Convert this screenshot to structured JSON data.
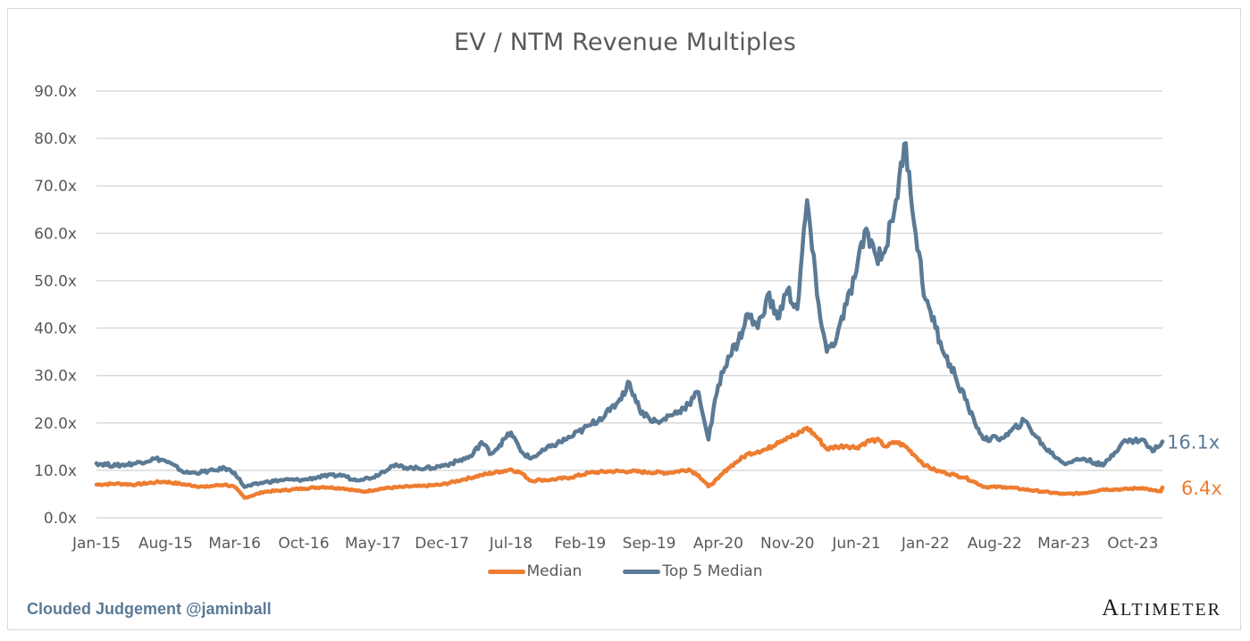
{
  "chart_data": {
    "type": "line",
    "title": "EV / NTM Revenue Multiples",
    "xlabel": "",
    "ylabel": "",
    "ylim": [
      0,
      90
    ],
    "y_ticks": [
      "0.0x",
      "10.0x",
      "20.0x",
      "30.0x",
      "40.0x",
      "50.0x",
      "60.0x",
      "70.0x",
      "80.0x",
      "90.0x"
    ],
    "y_tick_values": [
      0,
      10,
      20,
      30,
      40,
      50,
      60,
      70,
      80,
      90
    ],
    "x_tick_labels": [
      "Jan-15",
      "Aug-15",
      "Mar-16",
      "Oct-16",
      "May-17",
      "Dec-17",
      "Jul-18",
      "Feb-19",
      "Sep-19",
      "Apr-20",
      "Nov-20",
      "Jun-21",
      "Jan-22",
      "Aug-22",
      "Mar-23",
      "Oct-23"
    ],
    "x_range_months": [
      0,
      108
    ],
    "grid": true,
    "legend": "bottom",
    "series": [
      {
        "name": "Median",
        "color": "#ed7d31",
        "end_label": "6.4x",
        "x_months": [
          0,
          2,
          4,
          6,
          7,
          9,
          11,
          12,
          13,
          14,
          15,
          17,
          19,
          21,
          23,
          25,
          27,
          29,
          31,
          33,
          35,
          37,
          39,
          41,
          42,
          43,
          44,
          45,
          46,
          48,
          50,
          52,
          54,
          56,
          58,
          60,
          61,
          62,
          63,
          64,
          65,
          66,
          67,
          68,
          69,
          70,
          71,
          72,
          73,
          74,
          75,
          76,
          77,
          78,
          79,
          80,
          81,
          82,
          83,
          84,
          85,
          86,
          87,
          88,
          89,
          90,
          92,
          94,
          96,
          98,
          100,
          102,
          104,
          106,
          107,
          108
        ],
        "values": [
          7.0,
          7.2,
          7.0,
          7.5,
          7.6,
          7.0,
          6.5,
          6.8,
          7.0,
          6.5,
          4.2,
          5.5,
          5.8,
          6.2,
          6.5,
          6.2,
          5.5,
          6.2,
          6.5,
          6.7,
          7.0,
          8.0,
          9.0,
          9.8,
          10.2,
          9.5,
          7.8,
          8.0,
          8.0,
          8.5,
          9.5,
          9.8,
          9.8,
          9.6,
          9.5,
          10.2,
          9.0,
          6.6,
          8.3,
          10.5,
          12.0,
          13.5,
          14.0,
          14.5,
          16.0,
          17.0,
          17.5,
          19.0,
          17.0,
          14.5,
          15.0,
          15.2,
          14.8,
          16.0,
          16.5,
          15.0,
          16.0,
          15.0,
          13.0,
          11.0,
          10.0,
          9.5,
          9.0,
          8.5,
          7.5,
          6.5,
          6.5,
          6.0,
          5.5,
          5.0,
          5.2,
          6.0,
          6.0,
          6.3,
          5.8,
          5.5,
          6.4
        ]
      },
      {
        "name": "Top 5 Median",
        "color": "#5b7a95",
        "end_label": "16.1x",
        "x_months": [
          0,
          2,
          4,
          6,
          7,
          9,
          10,
          12,
          13,
          14,
          15,
          17,
          19,
          21,
          23,
          25,
          26,
          28,
          30,
          32,
          34,
          36,
          38,
          39,
          40,
          42,
          43,
          44,
          46,
          48,
          50,
          52,
          53,
          54,
          55,
          56,
          57,
          58,
          59,
          60,
          61,
          62,
          63,
          64,
          65,
          66,
          67,
          68,
          69,
          70,
          71,
          72,
          73,
          74,
          75,
          76,
          77,
          78,
          79,
          80,
          81,
          82,
          83,
          84,
          85,
          86,
          87,
          88,
          89,
          90,
          92,
          94,
          96,
          98,
          100,
          102,
          104,
          106,
          107,
          108
        ],
        "values": [
          11.5,
          11.0,
          11.5,
          12.5,
          12.0,
          9.5,
          9.5,
          10.0,
          10.5,
          9.5,
          6.5,
          7.5,
          8.0,
          8.0,
          8.8,
          9.0,
          8.0,
          8.5,
          11.0,
          10.5,
          10.5,
          11.5,
          13.0,
          16.0,
          13.5,
          18.0,
          14.0,
          12.5,
          15.0,
          17.0,
          19.5,
          22.5,
          25.0,
          28.5,
          23.0,
          21.0,
          20.0,
          21.5,
          22.5,
          24.0,
          26.5,
          16.5,
          28.0,
          34.0,
          37.0,
          43.0,
          40.0,
          47.0,
          42.0,
          48.0,
          44.0,
          67.0,
          47.0,
          35.0,
          38.0,
          45.0,
          52.0,
          61.0,
          55.0,
          57.0,
          67.0,
          79.0,
          60.0,
          46.0,
          40.0,
          34.0,
          30.0,
          25.0,
          20.0,
          16.5,
          17.0,
          20.5,
          15.0,
          11.5,
          12.5,
          11.0,
          16.0,
          16.5,
          14.0,
          16.1
        ]
      }
    ]
  },
  "footer": {
    "credit": "Clouded Judgement @jaminball",
    "logo": "ALTIMETER"
  }
}
